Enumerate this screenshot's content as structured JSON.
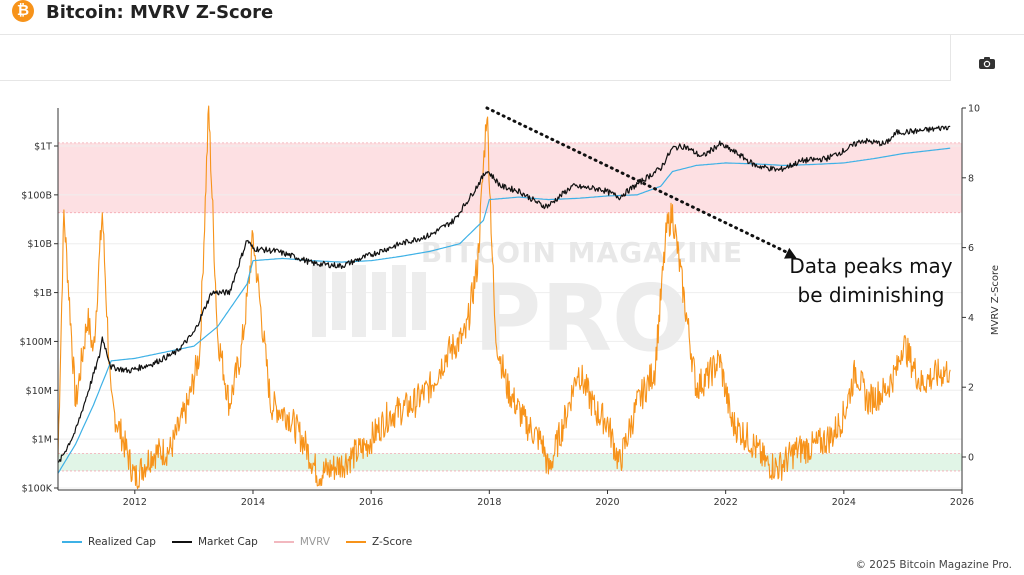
{
  "header": {
    "title": "Bitcoin: MVRV Z-Score",
    "logo_glyph": "₿"
  },
  "toolbar": {
    "camera_icon": "camera-icon"
  },
  "annotation": {
    "line1": "Data peaks may",
    "line2": "be diminishing"
  },
  "watermark": {
    "line1": "BITCOIN MAGAZINE",
    "line2": "PRO"
  },
  "footer": {
    "copyright": "© 2025 Bitcoin Magazine Pro."
  },
  "chart_data": {
    "type": "line",
    "x_ticks": [
      "2012",
      "2014",
      "2016",
      "2018",
      "2020",
      "2022",
      "2024",
      "2026"
    ],
    "y_left": {
      "scale": "log",
      "ticks": [
        "$100K",
        "$1M",
        "$10M",
        "$100M",
        "$1B",
        "$10B",
        "$100B",
        "$1T"
      ]
    },
    "y_right": {
      "label": "MVRV Z-Score",
      "ticks": [
        "0",
        "2",
        "4",
        "6",
        "8",
        "10"
      ],
      "range": [
        -1,
        10
      ]
    },
    "legend": [
      {
        "name": "Realized Cap",
        "color": "#3eb1e6",
        "enabled": true
      },
      {
        "name": "Market Cap",
        "color": "#111111",
        "enabled": true
      },
      {
        "name": "MVRV",
        "color": "#f2b8bf",
        "enabled": false
      },
      {
        "name": "Z-Score",
        "color": "#f7931a",
        "enabled": true
      }
    ],
    "bands": [
      {
        "name": "red-zone",
        "color": "#fde0e3",
        "y_range": [
          7,
          9
        ]
      },
      {
        "name": "green-zone",
        "color": "#e1f5e7",
        "y_range": [
          -0.4,
          0.1
        ]
      }
    ],
    "series": [
      {
        "name": "Market Cap",
        "x": [
          2010.7,
          2011.0,
          2011.4,
          2011.45,
          2011.6,
          2011.9,
          2012.3,
          2012.7,
          2013.0,
          2013.3,
          2013.6,
          2013.9,
          2014.0,
          2014.4,
          2014.8,
          2015.0,
          2015.5,
          2016.0,
          2016.5,
          2017.0,
          2017.4,
          2017.7,
          2017.96,
          2018.2,
          2018.5,
          2018.9,
          2019.0,
          2019.4,
          2019.9,
          2020.2,
          2020.6,
          2020.9,
          2021.1,
          2021.3,
          2021.6,
          2021.9,
          2022.2,
          2022.5,
          2022.9,
          2023.3,
          2023.7,
          2024.0,
          2024.3,
          2024.7,
          2024.9,
          2025.2,
          2025.5,
          2025.8
        ],
        "y": [
          0.3,
          1.5,
          50,
          120,
          30,
          25,
          35,
          60,
          150,
          1000,
          1000,
          12000,
          8000,
          7000,
          5000,
          4000,
          3500,
          6000,
          10000,
          15000,
          30000,
          100000,
          320000,
          150000,
          120000,
          60000,
          60000,
          150000,
          130000,
          90000,
          200000,
          350000,
          900000,
          1000000,
          600000,
          1100000,
          700000,
          400000,
          320000,
          500000,
          550000,
          800000,
          1300000,
          1100000,
          1900000,
          2000000,
          2200000,
          2500000
        ]
      },
      {
        "name": "Realized Cap",
        "x": [
          2010.7,
          2011.0,
          2011.3,
          2011.6,
          2012.0,
          2012.5,
          2013.0,
          2013.4,
          2013.9,
          2014.0,
          2014.5,
          2015.0,
          2015.5,
          2016.0,
          2016.5,
          2017.0,
          2017.5,
          2017.9,
          2018.0,
          2018.5,
          2019.0,
          2019.5,
          2020.0,
          2020.5,
          2020.9,
          2021.1,
          2021.5,
          2022.0,
          2022.5,
          2023.0,
          2023.5,
          2024.0,
          2024.5,
          2025.0,
          2025.8
        ],
        "y": [
          0.2,
          0.8,
          5,
          40,
          45,
          60,
          80,
          200,
          1500,
          4500,
          5000,
          4500,
          4200,
          4500,
          5500,
          7000,
          10000,
          30000,
          80000,
          90000,
          80000,
          85000,
          95000,
          100000,
          150000,
          300000,
          400000,
          450000,
          430000,
          400000,
          420000,
          450000,
          550000,
          700000,
          900000
        ]
      },
      {
        "name": "Z-Score",
        "x": [
          2010.7,
          2010.8,
          2011.0,
          2011.2,
          2011.3,
          2011.45,
          2011.6,
          2011.8,
          2012.0,
          2012.3,
          2012.6,
          2012.9,
          2013.1,
          2013.25,
          2013.4,
          2013.6,
          2013.8,
          2013.9,
          2014.0,
          2014.3,
          2014.6,
          2014.9,
          2015.1,
          2015.5,
          2015.9,
          2016.3,
          2016.7,
          2017.0,
          2017.3,
          2017.6,
          2017.8,
          2017.96,
          2018.1,
          2018.3,
          2018.6,
          2018.9,
          2019.0,
          2019.3,
          2019.5,
          2019.8,
          2020.0,
          2020.2,
          2020.5,
          2020.8,
          2021.0,
          2021.1,
          2021.3,
          2021.5,
          2021.7,
          2021.9,
          2022.1,
          2022.4,
          2022.7,
          2022.9,
          2023.2,
          2023.5,
          2023.8,
          2024.0,
          2024.2,
          2024.4,
          2024.7,
          2024.9,
          2025.0,
          2025.3,
          2025.5,
          2025.8
        ],
        "y": [
          0,
          7,
          1.5,
          4,
          3,
          7,
          1.5,
          0.5,
          -0.6,
          0.1,
          0.2,
          1.5,
          3,
          10,
          3.5,
          1.5,
          3,
          4.5,
          6.3,
          1.5,
          1.2,
          0.3,
          -0.5,
          -0.2,
          0.3,
          1.2,
          1.5,
          2,
          3,
          3.5,
          5.5,
          10,
          3.5,
          2,
          1,
          0.4,
          -0.4,
          1.2,
          2.5,
          1.3,
          1.0,
          -0.2,
          1.5,
          2.5,
          6.5,
          7.0,
          4.5,
          2.0,
          2.3,
          2.8,
          1.0,
          0.5,
          -0.2,
          -0.3,
          0.2,
          0.3,
          0.6,
          1.2,
          2.5,
          1.6,
          1.9,
          2.5,
          3.3,
          2.1,
          2.3,
          2.5
        ]
      }
    ],
    "trendline": {
      "from": {
        "x": 2017.96,
        "z": 10
      },
      "to": {
        "x": 2023.2,
        "z": 5.7
      },
      "style": "dotted-arrow"
    }
  }
}
